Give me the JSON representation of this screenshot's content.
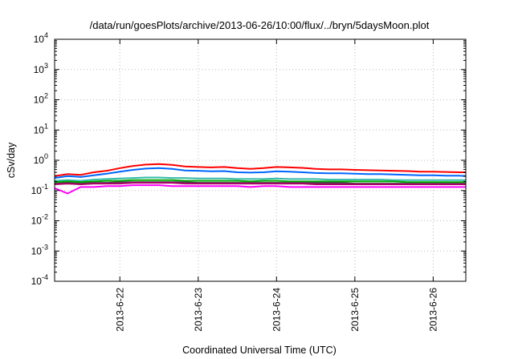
{
  "chart_data": {
    "type": "line",
    "title": "/data/run/goesPlots/archive/2013-06-26/10:00/flux/../bryn/5daysMoon.plot",
    "xlabel": "Coordinated Universal Time (UTC)",
    "ylabel": "cSv/day",
    "yscale": "log",
    "ylim": [
      0.0001,
      10000
    ],
    "xlim": [
      "2013-06-21 04:00",
      "2013-06-26 10:00"
    ],
    "grid": true,
    "x_ticks": [
      {
        "date": "2013-06-22",
        "label": "2013-6-22"
      },
      {
        "date": "2013-06-23",
        "label": "2013-6-23"
      },
      {
        "date": "2013-06-24",
        "label": "2013-6-24"
      },
      {
        "date": "2013-06-25",
        "label": "2013-6-25"
      },
      {
        "date": "2013-06-26",
        "label": "2013-6-26"
      }
    ],
    "y_ticks": [
      {
        "value": 0.0001,
        "base": "10",
        "exp": "-4"
      },
      {
        "value": 0.001,
        "base": "10",
        "exp": "-3"
      },
      {
        "value": 0.01,
        "base": "10",
        "exp": "-2"
      },
      {
        "value": 0.1,
        "base": "10",
        "exp": "-1"
      },
      {
        "value": 1,
        "base": "10",
        "exp": "0"
      },
      {
        "value": 10,
        "base": "10",
        "exp": "1"
      },
      {
        "value": 100,
        "base": "10",
        "exp": "2"
      },
      {
        "value": 1000,
        "base": "10",
        "exp": "3"
      },
      {
        "value": 10000,
        "base": "10",
        "exp": "4"
      }
    ],
    "x": [
      "2013-06-21 04:00",
      "2013-06-21 08:00",
      "2013-06-21 12:00",
      "2013-06-21 16:00",
      "2013-06-21 20:00",
      "2013-06-22 00:00",
      "2013-06-22 04:00",
      "2013-06-22 08:00",
      "2013-06-22 12:00",
      "2013-06-22 16:00",
      "2013-06-22 20:00",
      "2013-06-23 00:00",
      "2013-06-23 04:00",
      "2013-06-23 08:00",
      "2013-06-23 12:00",
      "2013-06-23 16:00",
      "2013-06-23 20:00",
      "2013-06-24 00:00",
      "2013-06-24 04:00",
      "2013-06-24 08:00",
      "2013-06-24 12:00",
      "2013-06-24 16:00",
      "2013-06-24 20:00",
      "2013-06-25 00:00",
      "2013-06-25 04:00",
      "2013-06-25 08:00",
      "2013-06-25 12:00",
      "2013-06-25 16:00",
      "2013-06-25 20:00",
      "2013-06-26 00:00",
      "2013-06-26 04:00",
      "2013-06-26 08:00",
      "2013-06-26 10:00"
    ],
    "series": [
      {
        "color": "#ff0000",
        "values": [
          0.3,
          0.35,
          0.33,
          0.4,
          0.45,
          0.55,
          0.65,
          0.72,
          0.75,
          0.7,
          0.62,
          0.6,
          0.58,
          0.6,
          0.55,
          0.52,
          0.55,
          0.6,
          0.58,
          0.56,
          0.52,
          0.5,
          0.5,
          0.48,
          0.47,
          0.46,
          0.45,
          0.44,
          0.42,
          0.42,
          0.41,
          0.4,
          0.4
        ]
      },
      {
        "color": "#0066ff",
        "values": [
          0.26,
          0.3,
          0.28,
          0.32,
          0.36,
          0.42,
          0.48,
          0.53,
          0.55,
          0.52,
          0.46,
          0.45,
          0.43,
          0.44,
          0.4,
          0.39,
          0.4,
          0.43,
          0.42,
          0.4,
          0.38,
          0.37,
          0.37,
          0.36,
          0.35,
          0.35,
          0.34,
          0.33,
          0.32,
          0.32,
          0.31,
          0.31,
          0.3
        ]
      },
      {
        "color": "#33bbaa",
        "values": [
          0.21,
          0.22,
          0.21,
          0.23,
          0.24,
          0.25,
          0.26,
          0.27,
          0.27,
          0.26,
          0.26,
          0.25,
          0.25,
          0.25,
          0.24,
          0.24,
          0.24,
          0.25,
          0.24,
          0.24,
          0.24,
          0.23,
          0.23,
          0.23,
          0.23,
          0.23,
          0.22,
          0.22,
          0.22,
          0.22,
          0.22,
          0.22,
          0.22
        ]
      },
      {
        "color": "#00aa00",
        "values": [
          0.19,
          0.2,
          0.19,
          0.2,
          0.21,
          0.21,
          0.22,
          0.22,
          0.22,
          0.22,
          0.21,
          0.21,
          0.21,
          0.21,
          0.21,
          0.2,
          0.21,
          0.21,
          0.2,
          0.2,
          0.2,
          0.2,
          0.2,
          0.2,
          0.2,
          0.2,
          0.2,
          0.19,
          0.19,
          0.19,
          0.19,
          0.19,
          0.19
        ]
      },
      {
        "color": "#444444",
        "values": [
          0.17,
          0.18,
          0.17,
          0.18,
          0.18,
          0.19,
          0.19,
          0.19,
          0.19,
          0.19,
          0.19,
          0.18,
          0.18,
          0.18,
          0.18,
          0.18,
          0.18,
          0.18,
          0.18,
          0.18,
          0.18,
          0.18,
          0.18,
          0.17,
          0.17,
          0.17,
          0.17,
          0.17,
          0.17,
          0.17,
          0.17,
          0.17,
          0.17
        ]
      },
      {
        "color": "#aa0066",
        "values": [
          0.16,
          0.17,
          0.16,
          0.17,
          0.17,
          0.17,
          0.18,
          0.18,
          0.18,
          0.18,
          0.17,
          0.17,
          0.17,
          0.17,
          0.17,
          0.17,
          0.17,
          0.17,
          0.17,
          0.17,
          0.16,
          0.16,
          0.16,
          0.16,
          0.16,
          0.16,
          0.16,
          0.16,
          0.16,
          0.16,
          0.16,
          0.16,
          0.16
        ]
      },
      {
        "color": "#ff00ff",
        "values": [
          0.12,
          0.08,
          0.13,
          0.13,
          0.14,
          0.14,
          0.15,
          0.15,
          0.15,
          0.14,
          0.14,
          0.14,
          0.14,
          0.14,
          0.14,
          0.13,
          0.14,
          0.14,
          0.13,
          0.13,
          0.13,
          0.13,
          0.13,
          0.13,
          0.13,
          0.13,
          0.13,
          0.13,
          0.13,
          0.13,
          0.13,
          0.13,
          0.13
        ]
      }
    ]
  }
}
